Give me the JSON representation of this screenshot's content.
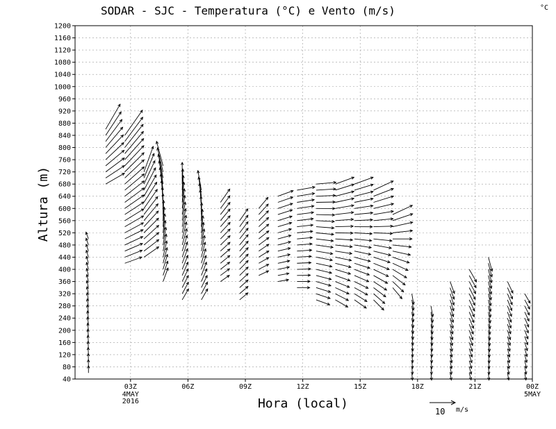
{
  "chart_data": {
    "type": "wind-barbs",
    "title": "SODAR - SJC - Temperatura (°C) e Vento (m/s)",
    "corner_unit": "°C",
    "ylabel": "Altura (m)",
    "xlabel": "Hora (local)",
    "ylim": [
      40,
      1200
    ],
    "yticks": [
      "40",
      "80",
      "120",
      "160",
      "200",
      "240",
      "280",
      "320",
      "360",
      "400",
      "440",
      "480",
      "520",
      "560",
      "600",
      "640",
      "680",
      "720",
      "760",
      "800",
      "840",
      "880",
      "920",
      "960",
      "1000",
      "1040",
      "1080",
      "1120",
      "1160",
      "1200"
    ],
    "xticks": [
      {
        "hour": 27,
        "label": "03Z",
        "sub1": "4MAY",
        "sub2": "2016"
      },
      {
        "hour": 30,
        "label": "06Z"
      },
      {
        "hour": 33,
        "label": "09Z"
      },
      {
        "hour": 36,
        "label": "12Z"
      },
      {
        "hour": 39,
        "label": "15Z"
      },
      {
        "hour": 42,
        "label": "18Z"
      },
      {
        "hour": 45,
        "label": "21Z"
      },
      {
        "hour": 48,
        "label": "00Z",
        "sub1": "5MAY"
      }
    ],
    "xlim": [
      24.1,
      48.0
    ],
    "legend": {
      "value": "10",
      "unit": "m/s"
    },
    "profiles": [
      {
        "hour": 24.8,
        "levels": [
          60,
          500
        ],
        "dirs": [
          180,
          160
        ],
        "speeds": [
          4,
          4
        ]
      },
      {
        "hour": 25.7,
        "levels": [
          680,
          860
        ],
        "dirs": [
          240,
          210
        ],
        "speeds": [
          12,
          16
        ]
      },
      {
        "hour": 26.7,
        "levels": [
          420,
          840
        ],
        "dirs": [
          250,
          215
        ],
        "speeds": [
          10,
          17
        ]
      },
      {
        "hour": 27.7,
        "levels": [
          440,
          720
        ],
        "dirs": [
          235,
          200
        ],
        "speeds": [
          10,
          15
        ]
      },
      {
        "hour": 28.7,
        "levels": [
          360,
          740
        ],
        "dirs": [
          200,
          165
        ],
        "speeds": [
          8,
          14
        ]
      },
      {
        "hour": 29.7,
        "levels": [
          300,
          680
        ],
        "dirs": [
          210,
          180
        ],
        "speeds": [
          7,
          12
        ]
      },
      {
        "hour": 30.7,
        "levels": [
          300,
          660
        ],
        "dirs": [
          210,
          170
        ],
        "speeds": [
          7,
          11
        ]
      },
      {
        "hour": 31.7,
        "levels": [
          360,
          620
        ],
        "dirs": [
          235,
          215
        ],
        "speeds": [
          6,
          9
        ]
      },
      {
        "hour": 32.7,
        "levels": [
          300,
          560
        ],
        "dirs": [
          230,
          215
        ],
        "speeds": [
          6,
          8
        ]
      },
      {
        "hour": 33.7,
        "levels": [
          380,
          600
        ],
        "dirs": [
          245,
          220
        ],
        "speeds": [
          6,
          8
        ]
      },
      {
        "hour": 34.7,
        "levels": [
          360,
          640
        ],
        "dirs": [
          260,
          250
        ],
        "speeds": [
          6,
          9
        ]
      },
      {
        "hour": 35.7,
        "levels": [
          340,
          660
        ],
        "dirs": [
          270,
          260
        ],
        "speeds": [
          7,
          10
        ]
      },
      {
        "hour": 36.7,
        "levels": [
          300,
          680
        ],
        "dirs": [
          290,
          265
        ],
        "speeds": [
          8,
          11
        ]
      },
      {
        "hour": 37.7,
        "levels": [
          300,
          680
        ],
        "dirs": [
          300,
          250
        ],
        "speeds": [
          8,
          11
        ]
      },
      {
        "hour": 38.7,
        "levels": [
          300,
          680
        ],
        "dirs": [
          305,
          250
        ],
        "speeds": [
          8,
          11
        ]
      },
      {
        "hour": 39.7,
        "levels": [
          300,
          660
        ],
        "dirs": [
          315,
          245
        ],
        "speeds": [
          8,
          12
        ]
      },
      {
        "hour": 40.7,
        "levels": [
          340,
          580
        ],
        "dirs": [
          320,
          245
        ],
        "speeds": [
          8,
          12
        ]
      },
      {
        "hour": 41.7,
        "levels": [
          60,
          320
        ],
        "dirs": [
          355,
          350
        ],
        "speeds": [
          4,
          6
        ]
      },
      {
        "hour": 42.7,
        "levels": [
          60,
          280
        ],
        "dirs": [
          355,
          350
        ],
        "speeds": [
          4,
          6
        ]
      },
      {
        "hour": 43.7,
        "levels": [
          60,
          360
        ],
        "dirs": [
          350,
          340
        ],
        "speeds": [
          4,
          7
        ]
      },
      {
        "hour": 44.7,
        "levels": [
          60,
          400
        ],
        "dirs": [
          345,
          330
        ],
        "speeds": [
          4,
          8
        ]
      },
      {
        "hour": 45.7,
        "levels": [
          60,
          440
        ],
        "dirs": [
          355,
          345
        ],
        "speeds": [
          4,
          8
        ]
      },
      {
        "hour": 46.7,
        "levels": [
          60,
          360
        ],
        "dirs": [
          350,
          335
        ],
        "speeds": [
          4,
          7
        ]
      },
      {
        "hour": 47.6,
        "levels": [
          60,
          320
        ],
        "dirs": [
          350,
          330
        ],
        "speeds": [
          4,
          6
        ]
      }
    ]
  }
}
